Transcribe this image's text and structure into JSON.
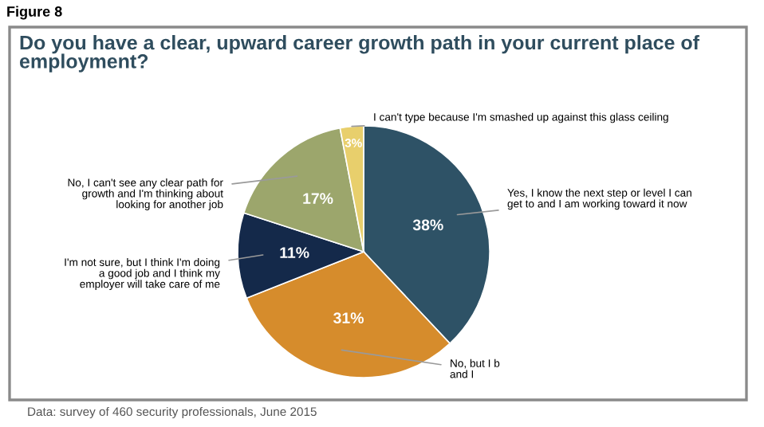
{
  "chart_data": {
    "type": "pie",
    "title": "Do you have a clear, upward career growth path in your current place of employment?",
    "categories": [
      "Yes, I know the next step or level I can\nget to and I am working toward it now",
      "No, but I b\nand I",
      "I'm not sure, but I think I'm doing\na good job and I think my\nemployer will take care of me",
      "No, I can't see any clear path for\ngrowth and I'm thinking about\nlooking for another job",
      "I can't type because I'm smashed up against this glass ceiling"
    ],
    "values": [
      38,
      31,
      11,
      17,
      3
    ],
    "value_labels": [
      "38%",
      "31%",
      "11%",
      "17%",
      "3%"
    ],
    "colors": [
      "#2e5266",
      "#d68c2c",
      "#14294a",
      "#9ca66c",
      "#e8cf6c"
    ],
    "annotations": [
      "Figure 8",
      "Data: survey of 460 security professionals, June 2015"
    ]
  }
}
